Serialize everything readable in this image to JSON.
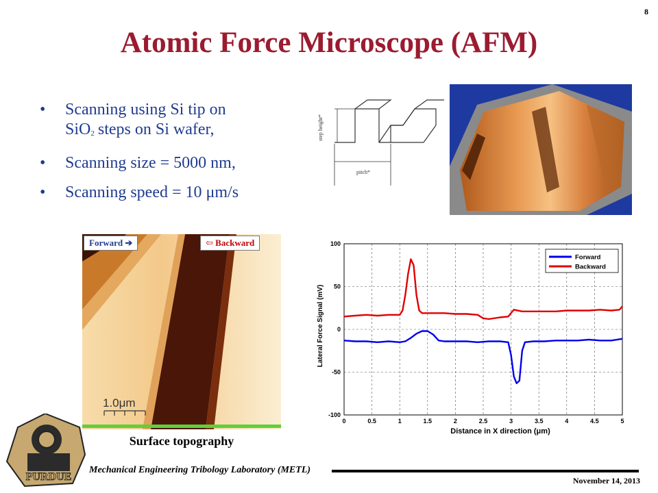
{
  "slide": {
    "number": "8",
    "title": "Atomic Force Microscope (AFM)"
  },
  "bullets": [
    {
      "line1": "Scanning using Si tip on",
      "line2_prefix": "SiO",
      "line2_sub": "2",
      "line2_suffix": "steps on Si wafer,"
    },
    {
      "text": "Scanning size = 5000 nm,"
    },
    {
      "text": "Scanning speed = 10 μm/s"
    }
  ],
  "step_diagram": {
    "height_label": "step height*",
    "pitch_label": "pitch*"
  },
  "topography": {
    "forward_label": "Forward",
    "backward_label": "Backward",
    "scale_label": "1.0μm",
    "caption": "Surface topography"
  },
  "footer": {
    "lab": "Mechanical Engineering Tribology Laboratory (METL)",
    "date": "November 14, 2013"
  },
  "logo": {
    "text": "PURDUE"
  },
  "colors": {
    "title": "#9b1b30",
    "bullets": "#1f3c8f",
    "forward": "#0000ee",
    "backward": "#e00000"
  },
  "chart_data": {
    "type": "line",
    "xlabel": "Distance in X direction (μm)",
    "ylabel": "Lateral Force Signal (mV)",
    "xlim": [
      0,
      5
    ],
    "ylim": [
      -100,
      100
    ],
    "xticks": [
      0,
      0.5,
      1,
      1.5,
      2,
      2.5,
      3,
      3.5,
      4,
      4.5,
      5
    ],
    "yticks": [
      -100,
      -50,
      0,
      50,
      100
    ],
    "grid": true,
    "legend_position": "top-right",
    "series": [
      {
        "name": "Forward",
        "color": "#0000ee",
        "x": [
          0,
          0.2,
          0.4,
          0.6,
          0.8,
          1.0,
          1.1,
          1.2,
          1.3,
          1.4,
          1.5,
          1.6,
          1.7,
          1.8,
          2.0,
          2.2,
          2.4,
          2.6,
          2.8,
          2.95,
          3.0,
          3.05,
          3.1,
          3.15,
          3.2,
          3.25,
          3.4,
          3.6,
          3.8,
          4.0,
          4.2,
          4.4,
          4.6,
          4.8,
          5.0
        ],
        "y": [
          -13,
          -14,
          -14,
          -15,
          -14,
          -15,
          -14,
          -10,
          -5,
          -2,
          -2,
          -6,
          -13,
          -14,
          -14,
          -14,
          -15,
          -14,
          -14,
          -15,
          -30,
          -55,
          -63,
          -60,
          -25,
          -15,
          -14,
          -14,
          -13,
          -13,
          -13,
          -12,
          -13,
          -13,
          -11
        ]
      },
      {
        "name": "Backward",
        "color": "#e00000",
        "x": [
          0,
          0.2,
          0.4,
          0.6,
          0.8,
          1.0,
          1.05,
          1.1,
          1.15,
          1.2,
          1.25,
          1.3,
          1.35,
          1.4,
          1.6,
          1.8,
          2.0,
          2.2,
          2.4,
          2.5,
          2.6,
          2.8,
          2.95,
          3.05,
          3.2,
          3.4,
          3.6,
          3.8,
          4.0,
          4.2,
          4.4,
          4.6,
          4.8,
          4.95,
          5.0
        ],
        "y": [
          15,
          16,
          17,
          16,
          17,
          17,
          22,
          40,
          65,
          82,
          75,
          40,
          22,
          19,
          19,
          19,
          18,
          18,
          17,
          13,
          12,
          14,
          15,
          23,
          21,
          21,
          21,
          21,
          22,
          22,
          22,
          23,
          22,
          23,
          27
        ]
      }
    ]
  }
}
